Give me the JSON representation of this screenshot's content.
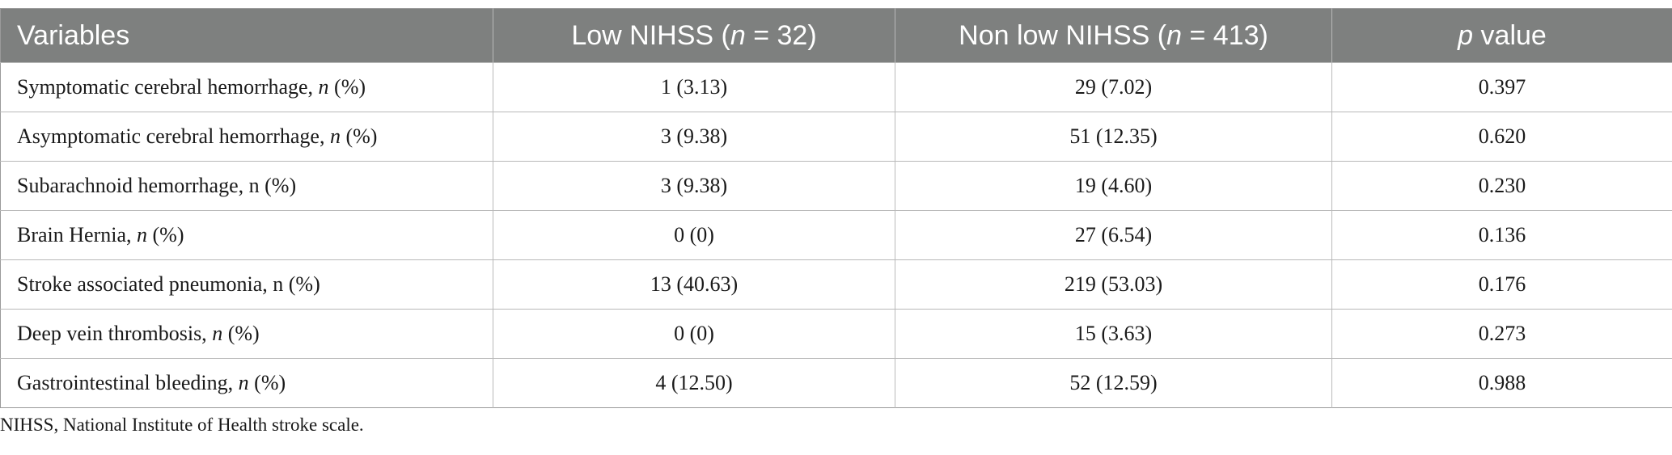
{
  "table": {
    "headers": {
      "variables": "Variables",
      "low_prefix": "Low NIHSS (",
      "low_n": "n",
      "low_suffix": " = 32)",
      "nonlow_prefix": "Non low NIHSS (",
      "nonlow_n": "n",
      "nonlow_suffix": " = 413)",
      "p_italic": "p",
      "p_suffix": " value"
    },
    "rows": [
      {
        "label": "Symptomatic cerebral hemorrhage, ",
        "n": "n",
        "pct": " (%)",
        "low": "1 (3.13)",
        "nonlow": "29 (7.02)",
        "p": "0.397"
      },
      {
        "label": "Asymptomatic cerebral hemorrhage, ",
        "n": "n",
        "pct": " (%)",
        "low": "3 (9.38)",
        "nonlow": "51 (12.35)",
        "p": "0.620"
      },
      {
        "label": "Subarachnoid hemorrhage, n (%)",
        "n": "",
        "pct": "",
        "low": "3 (9.38)",
        "nonlow": "19 (4.60)",
        "p": "0.230"
      },
      {
        "label": "Brain Hernia, ",
        "n": "n",
        "pct": " (%)",
        "low": "0 (0)",
        "nonlow": "27 (6.54)",
        "p": "0.136"
      },
      {
        "label": "Stroke associated pneumonia, n (%)",
        "n": "",
        "pct": "",
        "low": "13 (40.63)",
        "nonlow": "219 (53.03)",
        "p": "0.176"
      },
      {
        "label": "Deep vein thrombosis, ",
        "n": "n",
        "pct": " (%)",
        "low": "0 (0)",
        "nonlow": "15 (3.63)",
        "p": "0.273"
      },
      {
        "label": "Gastrointestinal bleeding, ",
        "n": "n",
        "pct": " (%)",
        "low": "4 (12.50)",
        "nonlow": "52 (12.59)",
        "p": "0.988"
      }
    ]
  },
  "footnote": "NIHSS, National Institute of Health stroke scale."
}
